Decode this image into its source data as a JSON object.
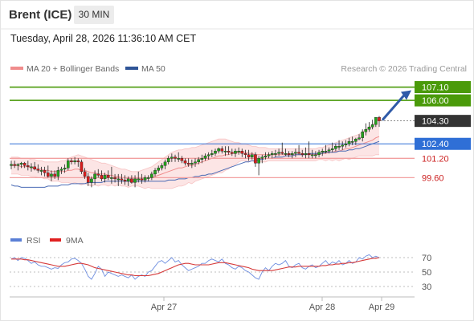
{
  "header": {
    "instrument": "Brent (ICE)",
    "timeframe": "30 MIN",
    "timestamp": "Tuesday, April 28, 2026 11:36:10 AM CET"
  },
  "legend": {
    "bollinger": {
      "label": "MA 20 + Bollinger Bands",
      "color": "#f08c8c"
    },
    "ma50": {
      "label": "MA 50",
      "color": "#2f5597"
    },
    "copyright": "Research © 2026 Trading Central"
  },
  "rsi_legend": {
    "rsi": {
      "label": "RSI",
      "color": "#5a7fd6"
    },
    "ma9": {
      "label": "9MA",
      "color": "#e02020"
    }
  },
  "chart_data": {
    "type": "candlestick",
    "x_ticks": [
      "Apr 27",
      "Apr 28",
      "Apr 29"
    ],
    "price_ylim": [
      96.5,
      108.0
    ],
    "levels": [
      {
        "label": "107.10",
        "value": 107.1,
        "color": "#4a9a0a",
        "style": "box"
      },
      {
        "label": "106.00",
        "value": 106.0,
        "color": "#4a9a0a",
        "style": "box"
      },
      {
        "label": "104.30",
        "value": 104.3,
        "color": "#333333",
        "style": "current"
      },
      {
        "label": "102.40",
        "value": 102.4,
        "color": "#2f6fd6",
        "style": "box"
      },
      {
        "label": "101.20",
        "value": 101.2,
        "color": "#cc2222",
        "style": "text"
      },
      {
        "label": "99.60",
        "value": 99.6,
        "color": "#cc2222",
        "style": "text"
      }
    ],
    "candles": {
      "open": [
        100.6,
        100.7,
        100.6,
        100.7,
        100.8,
        100.6,
        100.5,
        100.5,
        100.3,
        100.2,
        100.2,
        100.0,
        99.7,
        99.9,
        99.7,
        100.2,
        100.3,
        100.4,
        101.0,
        100.9,
        101.0,
        100.9,
        100.1,
        99.7,
        99.2,
        99.5,
        99.9,
        99.8,
        99.5,
        99.8,
        99.6,
        99.6,
        99.5,
        99.5,
        99.4,
        99.3,
        99.5,
        99.2,
        99.5,
        99.5,
        99.4,
        99.6,
        99.6,
        99.9,
        100.2,
        100.4,
        100.6,
        100.9,
        101.2,
        101.3,
        101.2,
        101.2,
        101.0,
        100.8,
        100.7,
        100.8,
        100.9,
        101.1,
        101.2,
        101.4,
        101.5,
        101.6,
        101.8,
        102.0,
        101.8,
        101.8,
        101.7,
        101.6,
        101.8,
        101.8,
        101.6,
        101.5,
        101.3,
        101.5,
        100.8,
        101.2,
        101.3,
        101.4,
        101.5,
        101.6,
        101.6,
        101.7,
        101.6,
        101.6,
        101.5,
        101.6,
        101.7,
        101.6,
        101.5,
        101.6,
        101.5,
        101.5,
        101.5,
        101.7,
        101.8,
        101.8,
        101.9,
        102.0,
        102.2,
        102.2,
        102.3,
        102.4,
        102.6,
        102.6,
        102.8,
        102.9,
        103.4,
        103.6,
        103.8,
        104.0,
        104.6
      ],
      "high": [
        101.0,
        101.0,
        100.8,
        100.9,
        100.9,
        101.0,
        100.8,
        100.9,
        100.7,
        100.5,
        100.5,
        100.6,
        100.2,
        100.2,
        100.5,
        100.5,
        100.7,
        101.2,
        101.2,
        101.3,
        101.2,
        101.1,
        100.4,
        100.0,
        99.7,
        100.2,
        100.3,
        100.2,
        100.0,
        100.2,
        100.5,
        99.9,
        99.9,
        99.9,
        99.8,
        99.7,
        99.8,
        99.8,
        100.1,
        99.9,
        99.8,
        99.8,
        100.1,
        100.4,
        100.6,
        100.8,
        101.1,
        101.4,
        101.6,
        101.5,
        101.7,
        101.4,
        101.2,
        101.2,
        101.1,
        101.2,
        101.3,
        101.5,
        101.6,
        101.7,
        101.9,
        102.0,
        102.1,
        102.2,
        102.2,
        102.2,
        102.0,
        102.0,
        102.1,
        102.0,
        101.9,
        101.9,
        101.7,
        101.7,
        101.4,
        101.5,
        101.7,
        101.7,
        101.8,
        101.9,
        102.0,
        102.5,
        102.0,
        101.8,
        101.8,
        102.0,
        102.3,
        101.9,
        102.1,
        102.6,
        101.9,
        101.8,
        101.9,
        102.0,
        102.3,
        102.1,
        102.5,
        102.4,
        102.7,
        102.6,
        102.7,
        102.9,
        103.0,
        102.9,
        103.2,
        103.6,
        104.1,
        104.2,
        104.4,
        104.6,
        104.7
      ],
      "low": [
        100.3,
        100.4,
        100.2,
        100.4,
        100.4,
        100.2,
        100.1,
        100.2,
        100.0,
        99.8,
        99.7,
        99.6,
        99.3,
        99.5,
        99.4,
        99.9,
        100.0,
        100.2,
        100.7,
        100.7,
        100.5,
        99.9,
        99.5,
        98.9,
        98.8,
        99.0,
        99.6,
        99.3,
        99.2,
        99.4,
        99.1,
        99.2,
        98.9,
        99.1,
        99.0,
        98.9,
        99.1,
        98.8,
        99.2,
        99.1,
        99.2,
        99.3,
        99.4,
        99.7,
        100.0,
        100.2,
        100.3,
        100.7,
        100.9,
        100.9,
        100.9,
        100.8,
        100.6,
        100.5,
        100.4,
        100.5,
        100.7,
        100.8,
        101.0,
        101.1,
        101.3,
        101.4,
        101.6,
        101.6,
        101.4,
        101.5,
        101.4,
        101.3,
        101.5,
        101.3,
        101.2,
        101.0,
        101.1,
        100.5,
        99.8,
        100.8,
        101.1,
        101.2,
        101.2,
        101.3,
        101.4,
        101.5,
        101.4,
        101.3,
        101.2,
        101.3,
        101.5,
        101.3,
        101.2,
        101.2,
        101.2,
        101.2,
        101.3,
        101.4,
        101.6,
        101.6,
        101.7,
        101.8,
        101.9,
        101.9,
        102.1,
        102.2,
        102.3,
        102.3,
        102.7,
        102.6,
        103.1,
        103.4,
        103.6,
        103.8,
        103.8
      ],
      "close": [
        100.7,
        100.6,
        100.7,
        100.8,
        100.6,
        100.5,
        100.5,
        100.3,
        100.2,
        100.2,
        100.0,
        99.7,
        99.9,
        99.7,
        100.2,
        100.3,
        100.4,
        101.0,
        100.9,
        101.0,
        100.9,
        100.1,
        99.7,
        99.2,
        99.5,
        99.9,
        99.8,
        99.5,
        99.8,
        99.6,
        99.6,
        99.5,
        99.5,
        99.4,
        99.3,
        99.5,
        99.2,
        99.5,
        99.5,
        99.4,
        99.6,
        99.6,
        99.9,
        100.2,
        100.4,
        100.6,
        100.9,
        101.2,
        101.3,
        101.2,
        101.2,
        101.0,
        100.8,
        100.7,
        100.8,
        100.9,
        101.1,
        101.2,
        101.4,
        101.5,
        101.6,
        101.8,
        102.0,
        101.8,
        101.8,
        101.7,
        101.6,
        101.8,
        101.8,
        101.6,
        101.5,
        101.3,
        101.5,
        100.8,
        101.2,
        101.3,
        101.4,
        101.5,
        101.6,
        101.6,
        101.7,
        101.6,
        101.6,
        101.5,
        101.6,
        101.7,
        101.6,
        101.5,
        101.6,
        101.5,
        101.5,
        101.5,
        101.7,
        101.8,
        101.8,
        101.9,
        102.0,
        102.2,
        102.2,
        102.3,
        102.4,
        102.6,
        102.6,
        102.8,
        102.9,
        103.4,
        103.6,
        103.8,
        104.0,
        104.6,
        104.3
      ]
    },
    "ma20": [
      100.6,
      100.6,
      100.6,
      100.5,
      100.5,
      100.5,
      100.4,
      100.4,
      100.3,
      100.3,
      100.2,
      100.2,
      100.1,
      100.1,
      100.1,
      100.1,
      100.1,
      100.2,
      100.2,
      100.3,
      100.3,
      100.2,
      100.2,
      100.1,
      100.0,
      100.0,
      99.9,
      99.9,
      99.9,
      99.8,
      99.8,
      99.7,
      99.7,
      99.6,
      99.6,
      99.5,
      99.5,
      99.5,
      99.5,
      99.5,
      99.5,
      99.6,
      99.6,
      99.7,
      99.8,
      99.9,
      100.0,
      100.1,
      100.2,
      100.3,
      100.4,
      100.4,
      100.5,
      100.6,
      100.6,
      100.7,
      100.8,
      100.9,
      101.0,
      101.1,
      101.2,
      101.3,
      101.4,
      101.4,
      101.5,
      101.5,
      101.6,
      101.6,
      101.7,
      101.7,
      101.7,
      101.6,
      101.6,
      101.5,
      101.5,
      101.5,
      101.5,
      101.5,
      101.5,
      101.5,
      101.5,
      101.5,
      101.5,
      101.5,
      101.5,
      101.5,
      101.5,
      101.5,
      101.5,
      101.5,
      101.5,
      101.5,
      101.6,
      101.6,
      101.6,
      101.7,
      101.7,
      101.8,
      101.8,
      101.9,
      102.0,
      102.0,
      102.1,
      102.2,
      102.3,
      102.4,
      102.5,
      102.6,
      102.7,
      102.9,
      103.0
    ],
    "bb_upper": [
      101.3,
      101.3,
      101.3,
      101.2,
      101.2,
      101.2,
      101.1,
      101.1,
      101.0,
      101.0,
      100.9,
      100.9,
      100.9,
      100.9,
      100.9,
      101.0,
      101.0,
      101.2,
      101.3,
      101.4,
      101.5,
      101.4,
      101.3,
      101.2,
      101.1,
      101.0,
      100.9,
      100.8,
      100.8,
      100.7,
      100.6,
      100.5,
      100.4,
      100.3,
      100.3,
      100.2,
      100.1,
      100.1,
      100.1,
      100.2,
      100.3,
      100.4,
      100.5,
      100.7,
      100.9,
      101.1,
      101.3,
      101.5,
      101.7,
      101.8,
      101.9,
      101.9,
      102.0,
      102.0,
      102.1,
      102.1,
      102.2,
      102.3,
      102.4,
      102.5,
      102.6,
      102.7,
      102.8,
      102.8,
      102.8,
      102.7,
      102.6,
      102.5,
      102.5,
      102.4,
      102.4,
      102.3,
      102.2,
      102.2,
      102.1,
      102.1,
      102.1,
      102.0,
      102.0,
      102.0,
      102.0,
      102.0,
      102.0,
      102.0,
      102.0,
      102.0,
      102.0,
      102.0,
      102.0,
      102.0,
      102.0,
      102.0,
      102.1,
      102.1,
      102.2,
      102.3,
      102.4,
      102.5,
      102.6,
      102.7,
      102.8,
      102.9,
      103.0,
      103.1,
      103.2,
      103.4,
      103.6,
      103.8,
      104.0,
      104.3,
      104.5
    ],
    "bb_lower": [
      99.9,
      99.9,
      99.9,
      99.8,
      99.8,
      99.8,
      99.7,
      99.7,
      99.6,
      99.6,
      99.5,
      99.5,
      99.3,
      99.3,
      99.3,
      99.2,
      99.2,
      99.2,
      99.1,
      99.2,
      99.1,
      99.0,
      99.1,
      99.0,
      98.9,
      99.0,
      98.9,
      99.0,
      99.0,
      98.9,
      99.0,
      98.9,
      99.0,
      98.9,
      98.9,
      98.8,
      98.9,
      98.9,
      98.9,
      98.8,
      98.7,
      98.8,
      98.7,
      98.7,
      98.7,
      98.7,
      98.7,
      98.7,
      98.7,
      98.8,
      98.9,
      98.9,
      99.0,
      99.2,
      99.1,
      99.3,
      99.4,
      99.5,
      99.6,
      99.7,
      99.8,
      99.9,
      100.0,
      100.0,
      100.2,
      100.3,
      100.6,
      100.7,
      100.9,
      101.0,
      101.0,
      100.9,
      101.0,
      100.8,
      100.9,
      100.9,
      100.9,
      101.0,
      101.0,
      101.0,
      101.0,
      101.0,
      101.0,
      101.0,
      101.0,
      101.0,
      101.0,
      101.0,
      101.0,
      101.0,
      101.0,
      101.0,
      101.1,
      101.1,
      101.0,
      101.1,
      101.0,
      101.1,
      101.0,
      101.1,
      101.2,
      101.1,
      101.2,
      101.3,
      101.4,
      101.4,
      101.4,
      101.4,
      101.4,
      101.5,
      101.5
    ],
    "ma50": [
      99.0,
      98.9,
      98.9,
      98.8,
      98.8,
      98.8,
      98.8,
      98.8,
      98.8,
      98.8,
      98.8,
      98.9,
      98.9,
      98.9,
      98.9,
      99.0,
      99.0,
      99.0,
      99.1,
      99.1,
      99.1,
      99.1,
      99.1,
      99.2,
      99.2,
      99.2,
      99.2,
      99.2,
      99.3,
      99.3,
      99.3,
      99.3,
      99.3,
      99.3,
      99.3,
      99.3,
      99.3,
      99.3,
      99.3,
      99.3,
      99.3,
      99.3,
      99.3,
      99.3,
      99.3,
      99.3,
      99.3,
      99.4,
      99.4,
      99.4,
      99.5,
      99.5,
      99.5,
      99.6,
      99.6,
      99.7,
      99.7,
      99.8,
      99.8,
      99.9,
      99.9,
      100.0,
      100.1,
      100.2,
      100.3,
      100.4,
      100.5,
      100.6,
      100.7,
      100.8,
      100.9,
      100.9,
      101.0,
      101.0,
      101.1,
      101.1,
      101.2,
      101.2,
      101.2,
      101.3,
      101.3,
      101.3,
      101.4,
      101.4,
      101.4,
      101.5,
      101.5,
      101.5,
      101.5,
      101.6,
      101.6,
      101.6,
      101.6,
      101.6,
      101.7,
      101.7,
      101.7,
      101.7,
      101.8,
      101.8,
      101.8,
      101.9,
      101.9,
      102.0,
      102.0,
      102.1,
      102.2,
      102.3,
      102.4,
      102.5,
      102.6
    ],
    "forecast": {
      "from": 104.3,
      "to": 107.1
    },
    "rsi": {
      "ylim": [
        20,
        80
      ],
      "ticks": [
        70,
        50,
        30
      ],
      "rsi_values": [
        68,
        70,
        66,
        70,
        69,
        66,
        62,
        64,
        60,
        58,
        58,
        56,
        54,
        56,
        55,
        60,
        63,
        64,
        68,
        69,
        66,
        62,
        54,
        44,
        40,
        48,
        58,
        54,
        44,
        50,
        48,
        46,
        44,
        46,
        44,
        42,
        46,
        40,
        44,
        46,
        44,
        50,
        52,
        58,
        64,
        66,
        62,
        66,
        70,
        64,
        66,
        60,
        56,
        52,
        54,
        56,
        58,
        62,
        62,
        66,
        68,
        66,
        64,
        68,
        62,
        60,
        56,
        54,
        58,
        56,
        52,
        50,
        46,
        42,
        40,
        50,
        56,
        52,
        58,
        62,
        60,
        62,
        66,
        58,
        56,
        60,
        62,
        56,
        54,
        58,
        60,
        56,
        58,
        62,
        66,
        60,
        64,
        62,
        66,
        60,
        62,
        66,
        62,
        64,
        70,
        68,
        72,
        74,
        70,
        72,
        70
      ],
      "ma9_values": [
        68,
        68,
        68,
        68,
        67,
        67,
        66,
        65,
        64,
        63,
        62,
        61,
        60,
        59,
        58,
        58,
        58,
        59,
        60,
        61,
        62,
        62,
        61,
        60,
        58,
        56,
        55,
        54,
        53,
        52,
        51,
        50,
        49,
        48,
        47,
        46,
        46,
        45,
        45,
        45,
        45,
        45,
        46,
        47,
        48,
        50,
        52,
        54,
        56,
        58,
        60,
        61,
        62,
        62,
        61,
        60,
        60,
        60,
        60,
        60,
        61,
        62,
        63,
        63,
        63,
        62,
        61,
        60,
        59,
        58,
        57,
        56,
        54,
        53,
        52,
        52,
        52,
        52,
        52,
        53,
        54,
        55,
        56,
        57,
        57,
        57,
        58,
        58,
        58,
        58,
        58,
        58,
        58,
        59,
        59,
        60,
        60,
        61,
        61,
        62,
        62,
        63,
        63,
        64,
        65,
        66,
        67,
        68,
        69,
        69,
        70
      ]
    }
  }
}
